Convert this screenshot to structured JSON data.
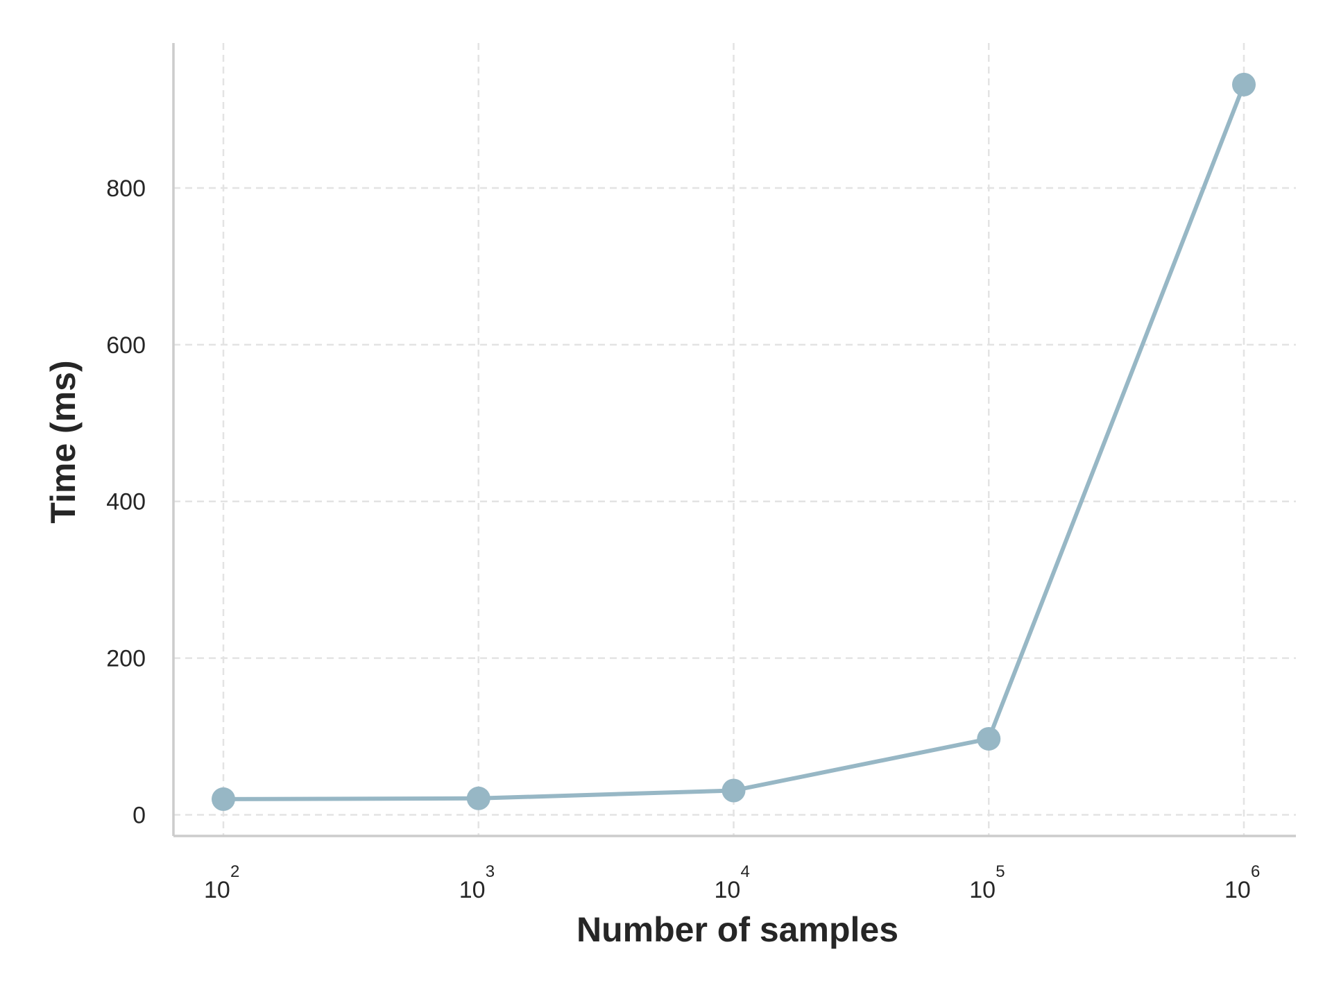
{
  "chart_data": {
    "type": "line",
    "title": "",
    "xlabel": "Number of samples",
    "ylabel": "Time (ms)",
    "x_scale": "log",
    "x": [
      100,
      1000,
      10000,
      100000,
      1000000
    ],
    "x_tick_labels": [
      {
        "base": "10",
        "exp": "2"
      },
      {
        "base": "10",
        "exp": "3"
      },
      {
        "base": "10",
        "exp": "4"
      },
      {
        "base": "10",
        "exp": "5"
      },
      {
        "base": "10",
        "exp": "6"
      }
    ],
    "y_ticks": [
      0,
      200,
      400,
      600,
      800
    ],
    "y_tick_labels": [
      "0",
      "200",
      "400",
      "600",
      "800"
    ],
    "ylim": [
      -27,
      985
    ],
    "grid": true,
    "series": [
      {
        "values": [
          20,
          21,
          31,
          97,
          932
        ],
        "color": "#97b7c5",
        "marker": "circle"
      }
    ],
    "spine_color": "#cccccc",
    "grid_color": "#e3e3e3"
  }
}
